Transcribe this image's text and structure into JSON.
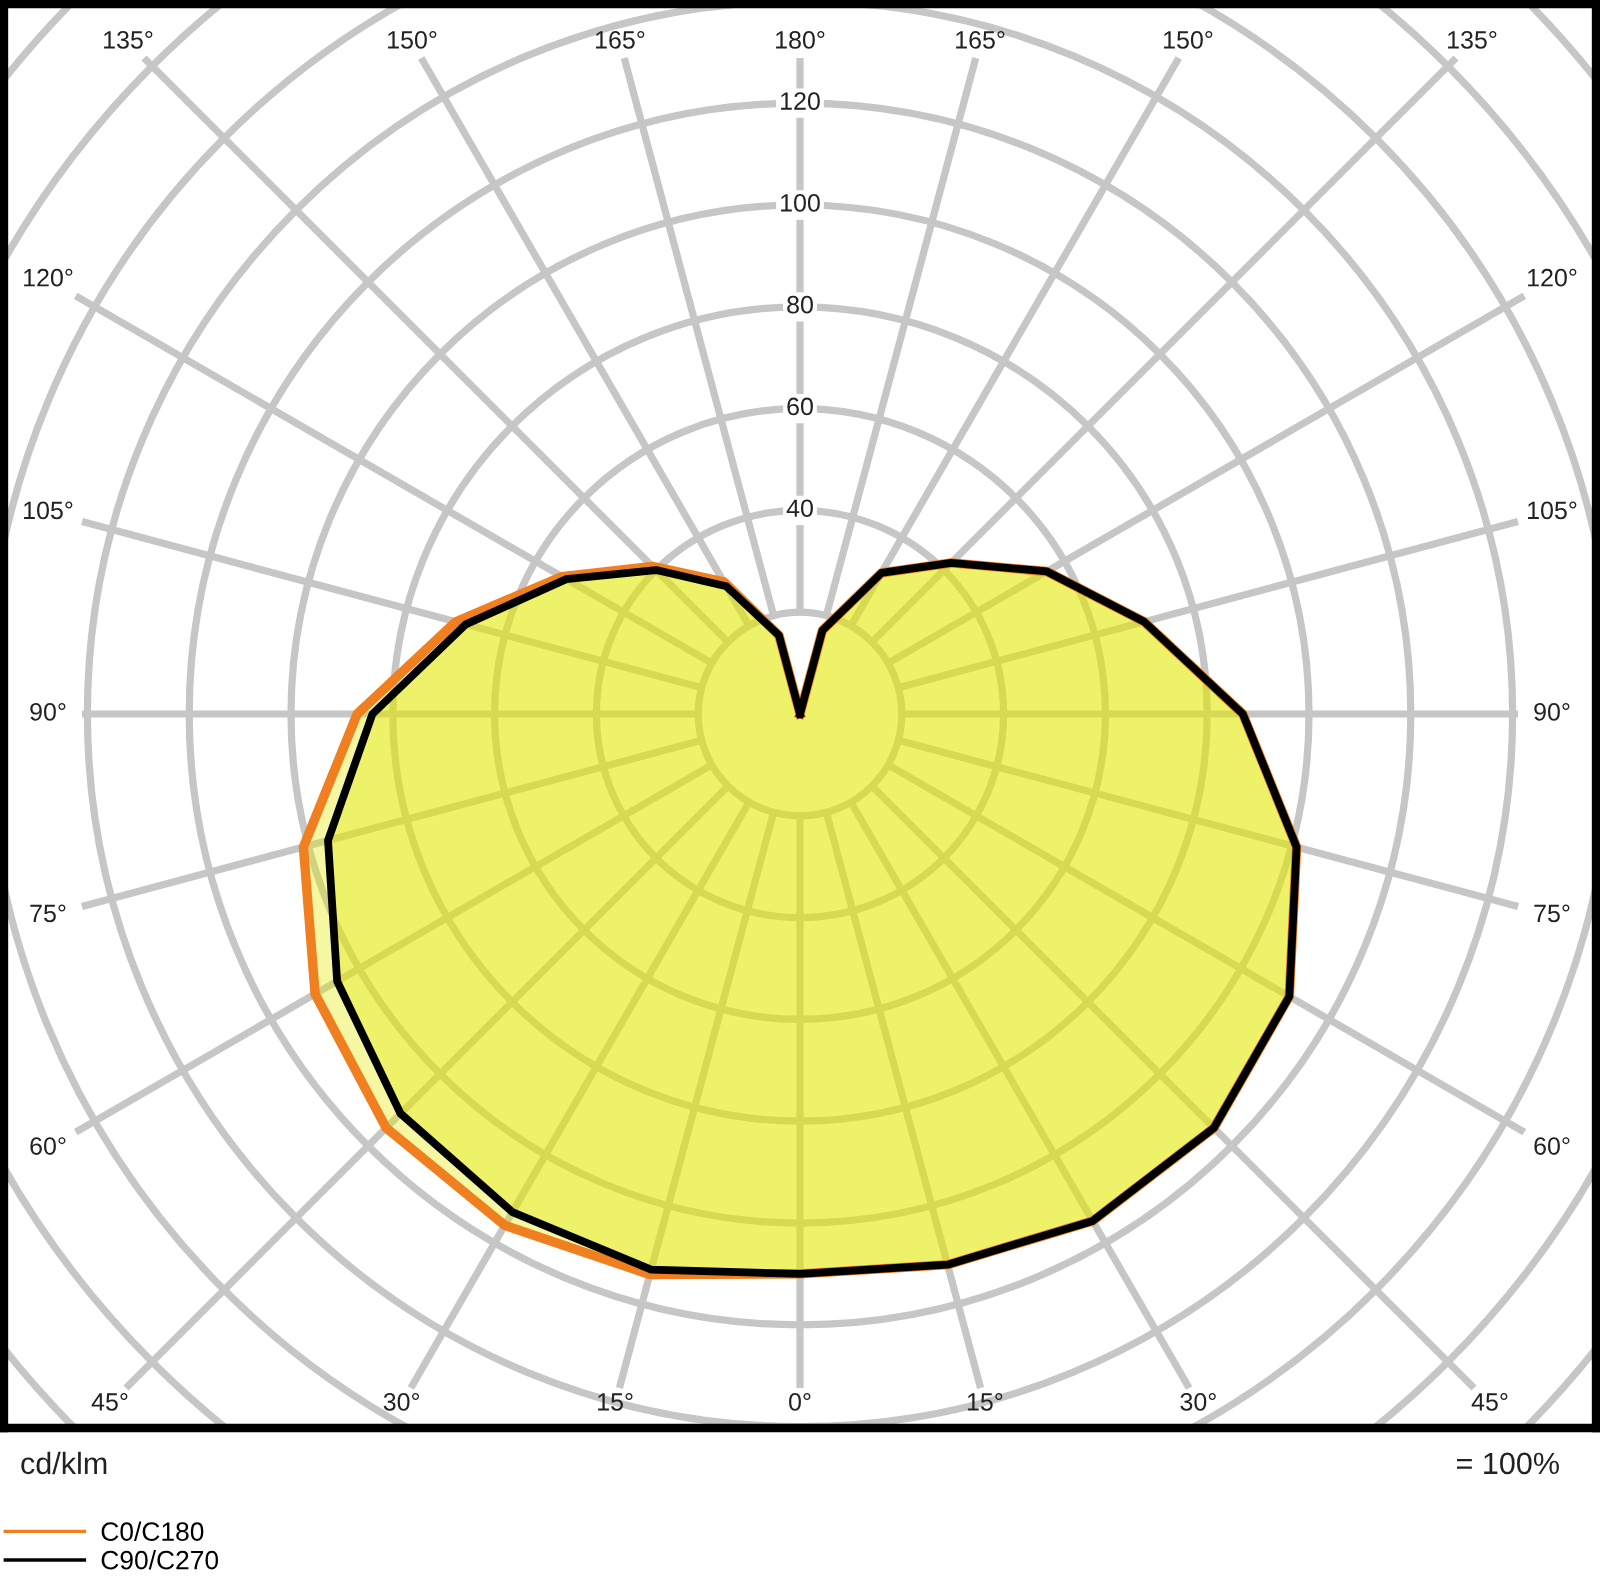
{
  "chart_data": {
    "type": "radar",
    "categories": [
      "180°",
      "165°",
      "150°",
      "135°",
      "120°",
      "105°",
      "90°",
      "75°",
      "60°",
      "45°",
      "30°",
      "15°",
      "0°",
      "15°",
      "30°",
      "45°",
      "60°",
      "75°",
      "90°",
      "105°",
      "120°",
      "135°",
      "150°",
      "165°"
    ],
    "series": [
      {
        "name": "C0/C180",
        "color": "#f07f1f",
        "values": [
          0,
          17,
          32,
          42,
          56,
          70,
          87,
          101,
          111,
          115,
          115,
          112,
          110,
          114,
          116,
          115,
          110,
          101,
          87,
          70,
          54,
          41,
          30,
          16
        ]
      },
      {
        "name": "C90/C270",
        "color": "#000000",
        "values": [
          0,
          17,
          32,
          42,
          56,
          70,
          87,
          101,
          111,
          115,
          115,
          112,
          110,
          113,
          113,
          111,
          105,
          96,
          84,
          68,
          53,
          40,
          29,
          16
        ]
      }
    ],
    "ylim": [
      0,
      200
    ],
    "yticks": [
      40,
      60,
      80,
      100,
      120
    ],
    "ylabel": "cd/klm",
    "annotations": [
      "= 100%"
    ],
    "grid": true,
    "legend": "bottom left",
    "line_style": "solid"
  }
}
